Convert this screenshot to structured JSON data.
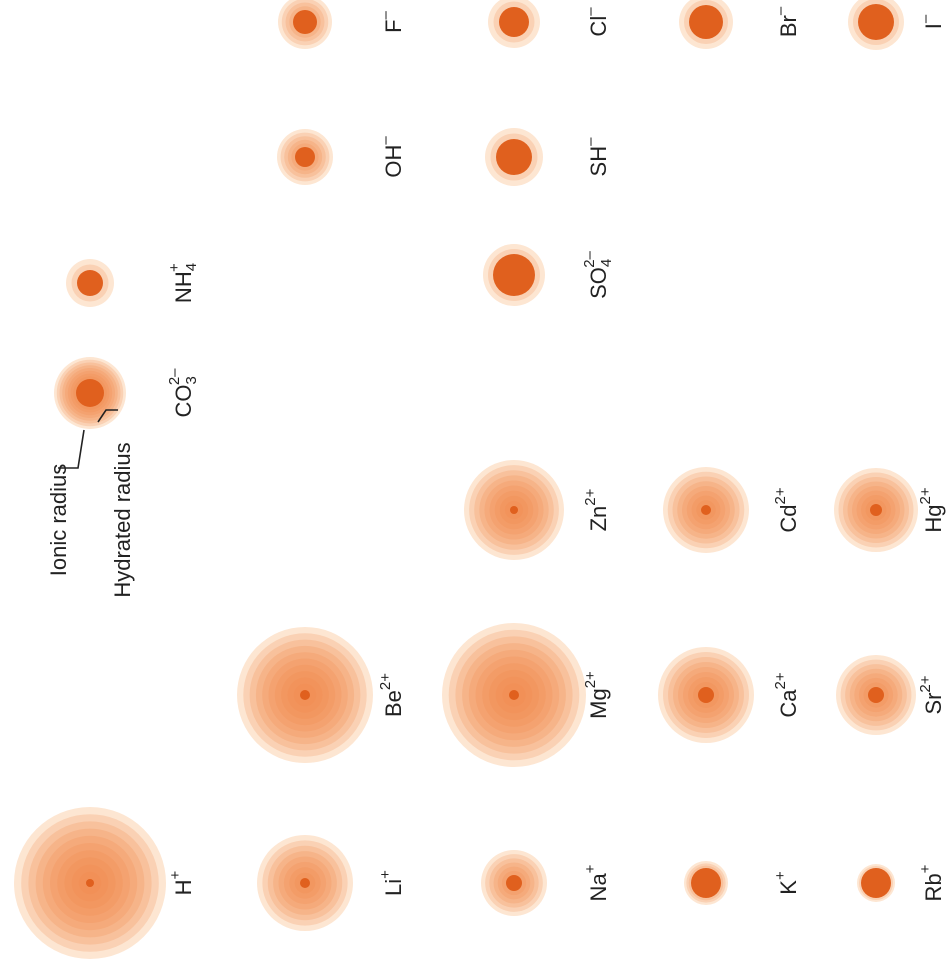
{
  "legend": {
    "ionic": "Ionic radius",
    "hydrated": "Hydrated radius"
  },
  "ions": [
    {
      "symbol": "H",
      "charge": "+"
    },
    {
      "symbol": "Li",
      "charge": "+"
    },
    {
      "symbol": "Na",
      "charge": "+"
    },
    {
      "symbol": "K",
      "charge": "+"
    },
    {
      "symbol": "Rb",
      "charge": "+"
    },
    {
      "symbol": "Be",
      "charge": "2+"
    },
    {
      "symbol": "Mg",
      "charge": "2+"
    },
    {
      "symbol": "Ca",
      "charge": "2+"
    },
    {
      "symbol": "Sr",
      "charge": "2+"
    },
    {
      "symbol": "Zn",
      "charge": "2+"
    },
    {
      "symbol": "Cd",
      "charge": "2+"
    },
    {
      "symbol": "Hg",
      "charge": "2+"
    },
    {
      "symbol": "CO",
      "sub": "3",
      "charge": "2–"
    },
    {
      "symbol": "NH",
      "sub": "4",
      "charge": "+"
    },
    {
      "symbol": "SO",
      "sub": "4",
      "charge": "2–"
    },
    {
      "symbol": "OH",
      "charge": "–"
    },
    {
      "symbol": "SH",
      "charge": "–"
    },
    {
      "symbol": "F",
      "charge": "–"
    },
    {
      "symbol": "Cl",
      "charge": "–"
    },
    {
      "symbol": "Br",
      "charge": "–"
    },
    {
      "symbol": "I",
      "charge": "–"
    }
  ]
}
